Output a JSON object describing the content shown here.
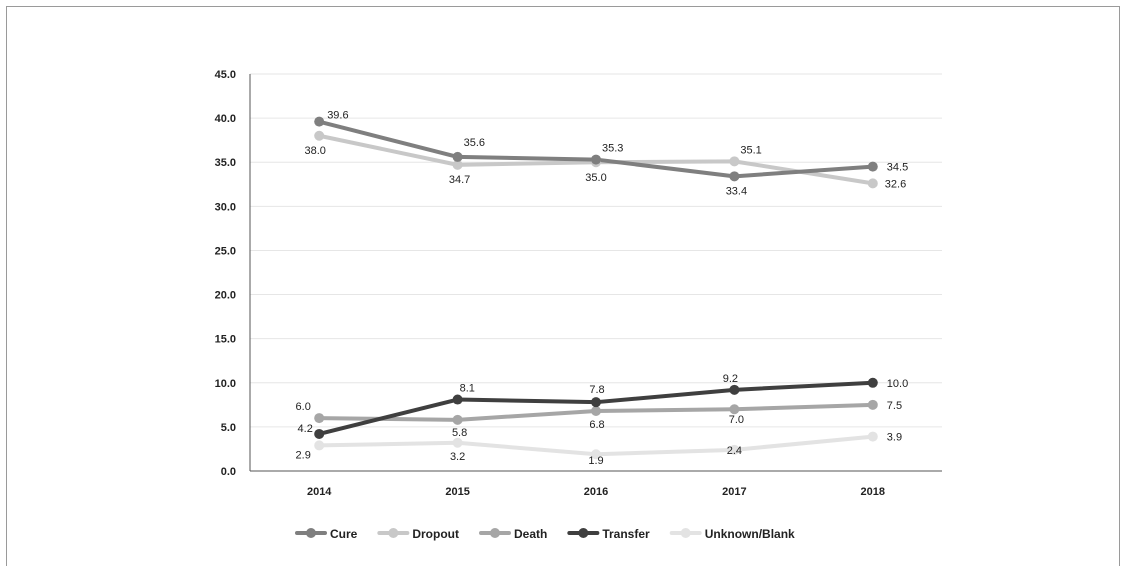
{
  "chart_data": {
    "type": "line",
    "categories": [
      "2014",
      "2015",
      "2016",
      "2017",
      "2018"
    ],
    "ylim": [
      0,
      45
    ],
    "yticks": [
      "0.0",
      "5.0",
      "10.0",
      "15.0",
      "20.0",
      "25.0",
      "30.0",
      "35.0",
      "40.0",
      "45.0"
    ],
    "grid": true,
    "legend_position": "bottom",
    "series": [
      {
        "name": "Cure",
        "color": "#7f7f7f",
        "values": [
          39.6,
          35.6,
          35.3,
          33.4,
          34.5
        ],
        "labels": [
          "39.6",
          "35.6",
          "35.3",
          "33.4",
          "34.5"
        ]
      },
      {
        "name": "Dropout",
        "color": "#c8c8c8",
        "values": [
          38.0,
          34.7,
          35.0,
          35.1,
          32.6
        ],
        "labels": [
          "38.0",
          "34.7",
          "35.0",
          "35.1",
          "32.6"
        ]
      },
      {
        "name": "Death",
        "color": "#a6a6a6",
        "values": [
          6.0,
          5.8,
          6.8,
          7.0,
          7.5
        ],
        "labels": [
          "6.0",
          "5.8",
          "6.8",
          "7.0",
          "7.5"
        ]
      },
      {
        "name": "Transfer",
        "color": "#3f3f3f",
        "values": [
          4.2,
          8.1,
          7.8,
          9.2,
          10.0
        ],
        "labels": [
          "4.2",
          "8.1",
          "7.8",
          "9.2",
          "10.0"
        ]
      },
      {
        "name": "Unknown/Blank",
        "color": "#e3e3e3",
        "values": [
          2.9,
          3.2,
          1.9,
          2.4,
          3.9
        ],
        "labels": [
          "2.9",
          "3.2",
          "1.9",
          "2.4",
          "3.9"
        ]
      }
    ]
  }
}
